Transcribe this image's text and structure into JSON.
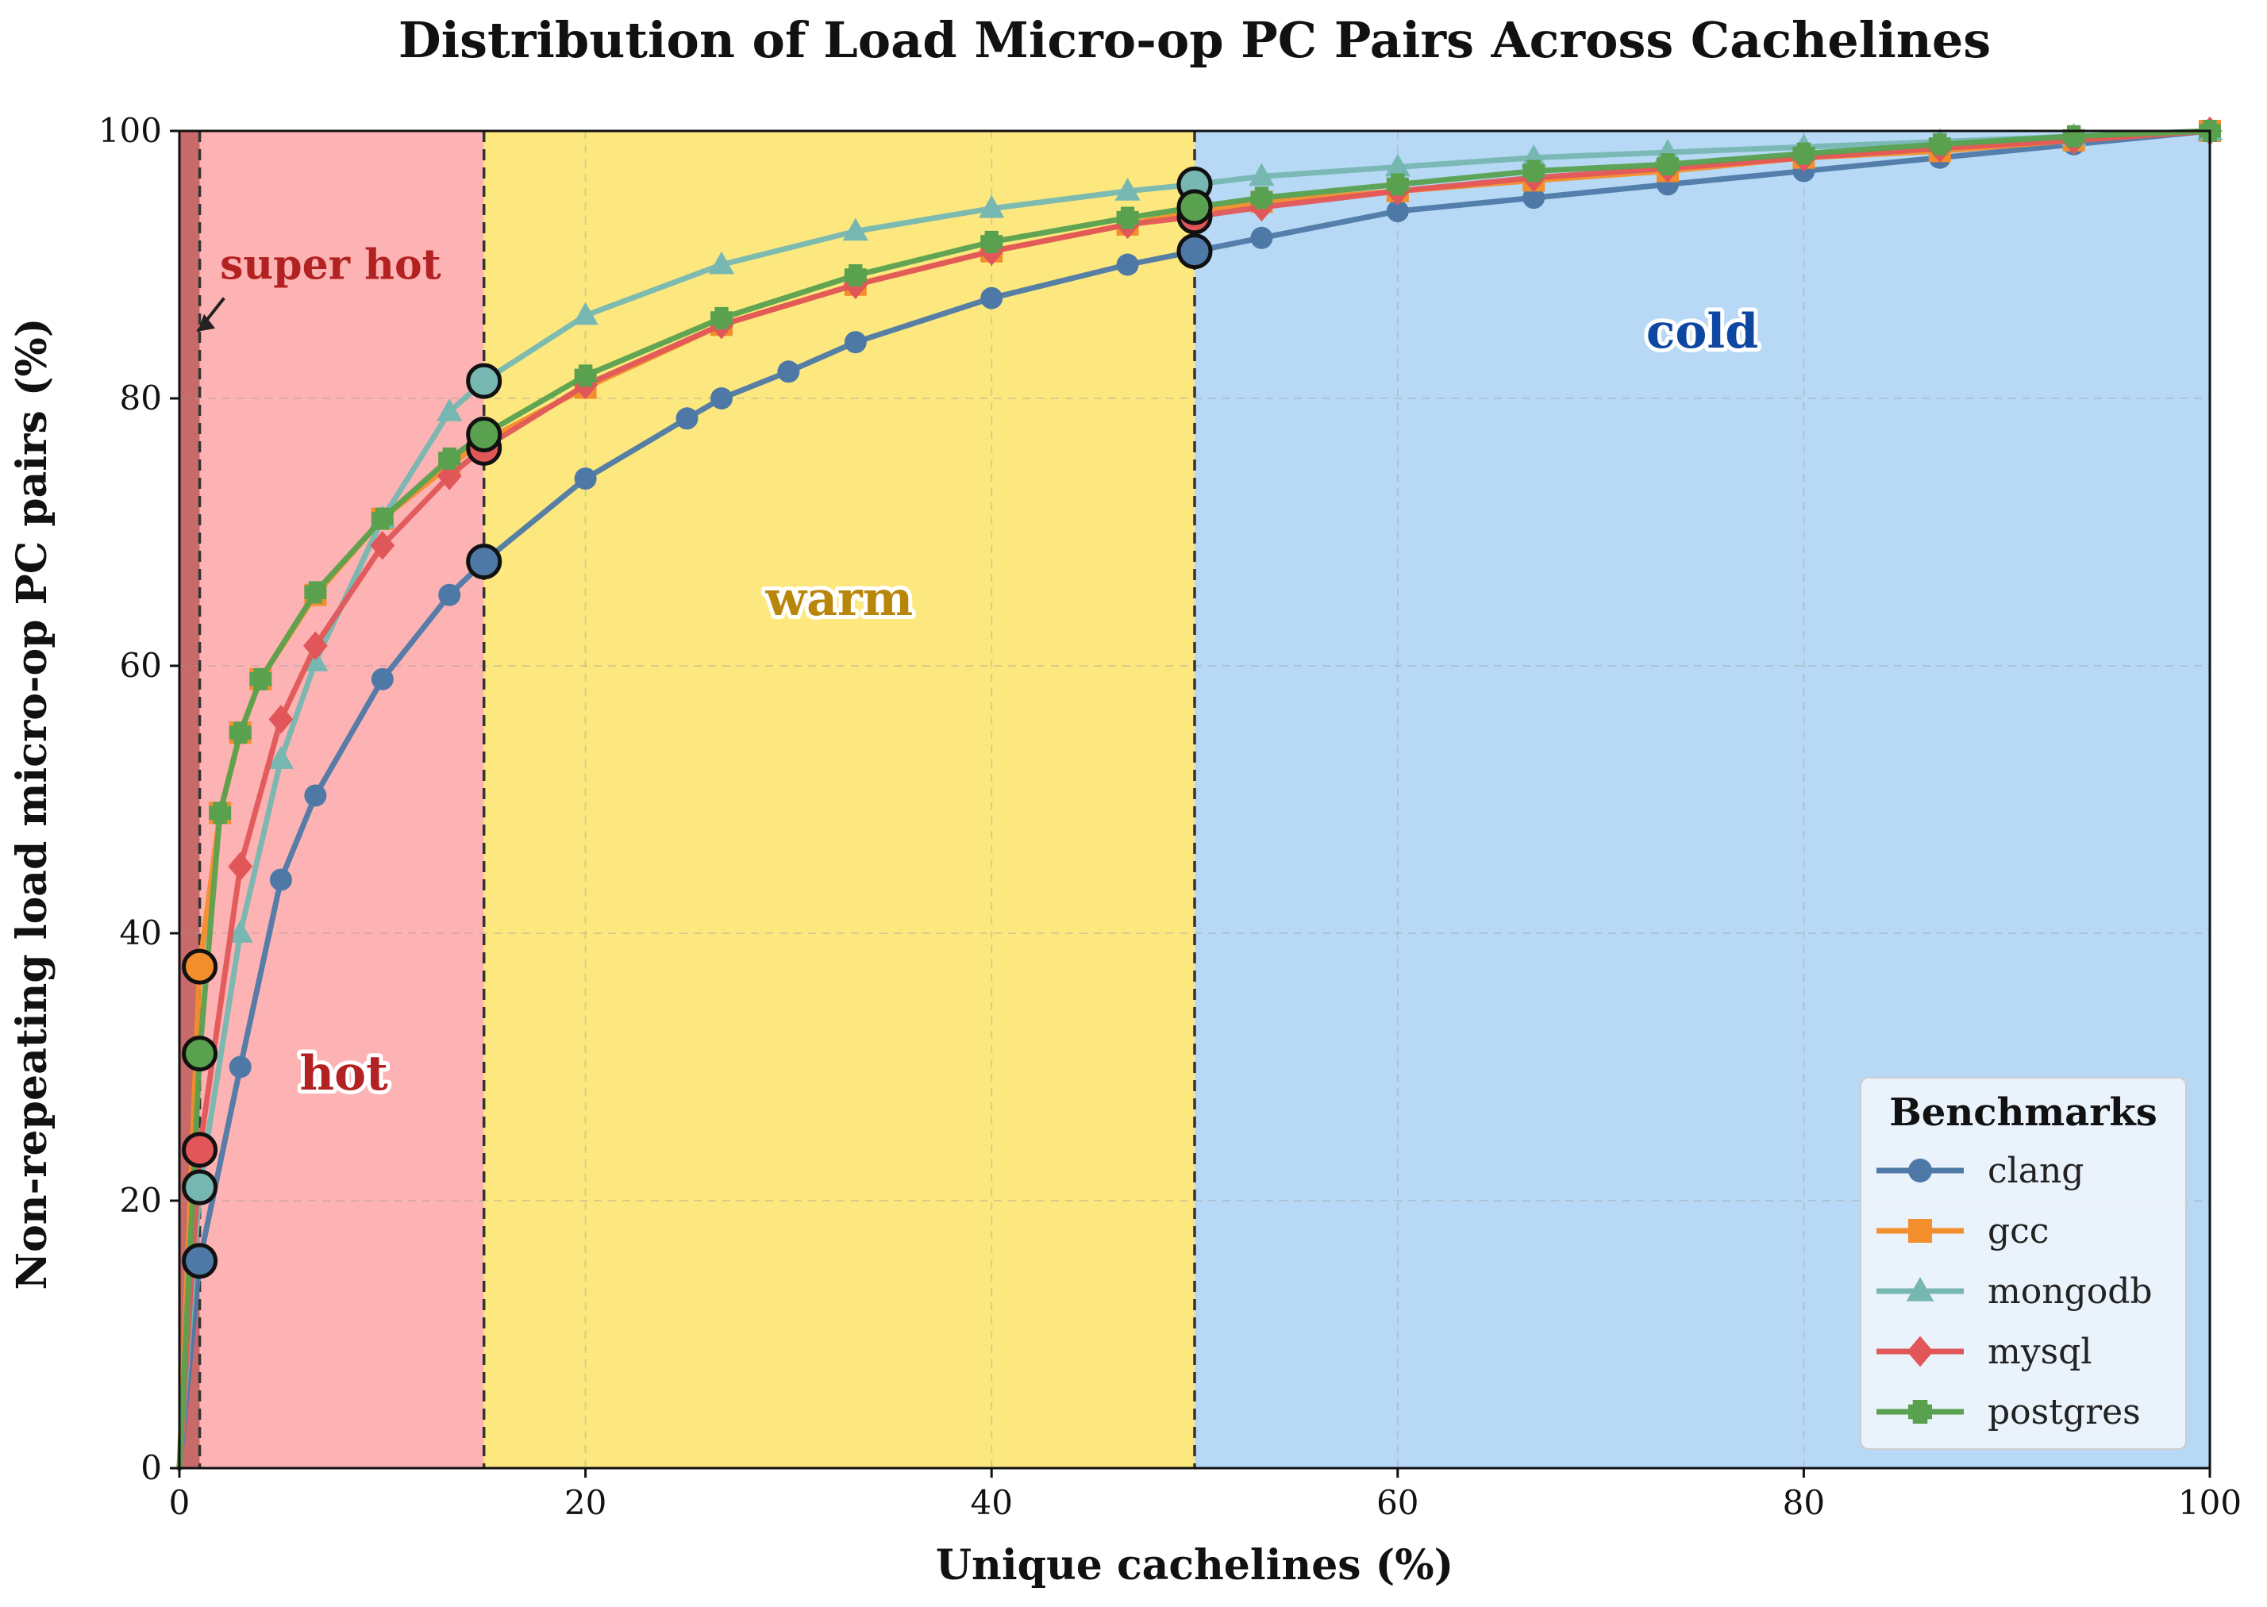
{
  "chart_data": {
    "type": "line",
    "title": "Distribution of Load Micro-op PC Pairs Across Cachelines",
    "xlabel": "Unique cachelines (%)",
    "ylabel": "Non-repeating load micro-op PC pairs (%)",
    "xlim": [
      0,
      100
    ],
    "ylim": [
      0,
      100
    ],
    "xticks": [
      0,
      20,
      40,
      60,
      80,
      100
    ],
    "yticks": [
      0,
      20,
      40,
      60,
      80,
      100
    ],
    "grid": true,
    "legend": {
      "title": "Benchmarks",
      "placement": "lower-right"
    },
    "regions": [
      {
        "label": "super hot",
        "x_range": [
          0,
          1
        ],
        "color": "#c96a6a"
      },
      {
        "label": "hot",
        "x_range": [
          1,
          15
        ],
        "color": "#fdb3b3"
      },
      {
        "label": "warm",
        "x_range": [
          15,
          50
        ],
        "color": "#fde880"
      },
      {
        "label": "cold",
        "x_range": [
          50,
          100
        ],
        "color": "#b8d9f5"
      }
    ],
    "region_label_colors": {
      "super hot": "#b22222",
      "hot": "#b22222",
      "warm": "#b8860b",
      "cold": "#0d47a1"
    },
    "boundaries": [
      1,
      15,
      50
    ],
    "series": [
      {
        "name": "clang",
        "color": "#4e79a7",
        "marker": "circle",
        "x": [
          0,
          1,
          3,
          5,
          6.7,
          10,
          13.3,
          15,
          20,
          25,
          26.7,
          30,
          33.3,
          40,
          46.7,
          50,
          53.3,
          60,
          66.7,
          73.3,
          80,
          86.7,
          93.3,
          100
        ],
        "y": [
          0,
          15.5,
          30,
          44,
          50.3,
          59,
          65.3,
          67.8,
          74,
          78.5,
          80,
          82,
          84.2,
          87.5,
          90,
          91,
          92,
          94,
          95,
          96,
          97,
          98,
          99,
          100
        ],
        "highlight": [
          [
            1,
            15.5
          ],
          [
            15,
            67.8
          ],
          [
            50,
            91
          ]
        ]
      },
      {
        "name": "gcc",
        "color": "#f28e2b",
        "marker": "square",
        "x": [
          0,
          1,
          2,
          3,
          4,
          6.7,
          10,
          13.3,
          15,
          20,
          26.7,
          33.3,
          40,
          46.7,
          50,
          53.3,
          60,
          66.7,
          73.3,
          80,
          86.7,
          93.3,
          100
        ],
        "y": [
          0,
          37.5,
          49,
          55,
          59,
          65.3,
          71,
          75,
          76.8,
          80.8,
          85.5,
          88.5,
          91,
          93,
          94,
          94.7,
          95.5,
          96.3,
          97,
          98,
          98.5,
          99.3,
          100
        ],
        "highlight": [
          [
            1,
            37.5
          ]
        ]
      },
      {
        "name": "mongodb",
        "color": "#76b7b2",
        "marker": "triangle",
        "x": [
          0,
          1,
          3,
          5,
          6.7,
          10,
          13.3,
          15,
          20,
          26.7,
          33.3,
          40,
          46.7,
          50,
          53.3,
          60,
          66.7,
          73.3,
          80,
          86.7,
          93.3,
          100
        ],
        "y": [
          0,
          21,
          40,
          53,
          60.3,
          71,
          79,
          81.3,
          86.2,
          90,
          92.5,
          94.2,
          95.5,
          96,
          96.6,
          97.3,
          98,
          98.4,
          98.8,
          99.2,
          99.6,
          100
        ],
        "highlight": [
          [
            1,
            21
          ],
          [
            15,
            81.3
          ],
          [
            50,
            96
          ]
        ]
      },
      {
        "name": "mysql",
        "color": "#e15759",
        "marker": "diamond",
        "x": [
          0,
          1,
          3,
          5,
          6.7,
          10,
          13.3,
          15,
          20,
          26.7,
          33.3,
          40,
          46.7,
          50,
          53.3,
          60,
          66.7,
          73.3,
          80,
          86.7,
          93.3,
          100
        ],
        "y": [
          0,
          23.8,
          45,
          56,
          61.5,
          69,
          74.2,
          76.3,
          81,
          85.5,
          88.5,
          91,
          93,
          93.6,
          94.3,
          95.5,
          96.5,
          97.2,
          98,
          98.7,
          99.3,
          100
        ],
        "highlight": [
          [
            1,
            23.8
          ],
          [
            15,
            76.3
          ],
          [
            50,
            93.6
          ]
        ]
      },
      {
        "name": "postgres",
        "color": "#59a14f",
        "marker": "plus",
        "x": [
          0,
          1,
          2,
          3,
          4,
          6.7,
          10,
          13.3,
          15,
          20,
          26.7,
          33.3,
          40,
          46.7,
          50,
          53.3,
          60,
          66.7,
          73.3,
          80,
          86.7,
          93.3,
          100
        ],
        "y": [
          0,
          31,
          49,
          55,
          59,
          65.5,
          71,
          75.5,
          77.3,
          81.7,
          86,
          89.2,
          91.7,
          93.5,
          94.3,
          95,
          96,
          97,
          97.5,
          98.3,
          99,
          99.6,
          100
        ],
        "highlight": [
          [
            1,
            31
          ],
          [
            15,
            77.3
          ],
          [
            50,
            94.3
          ]
        ]
      }
    ]
  }
}
